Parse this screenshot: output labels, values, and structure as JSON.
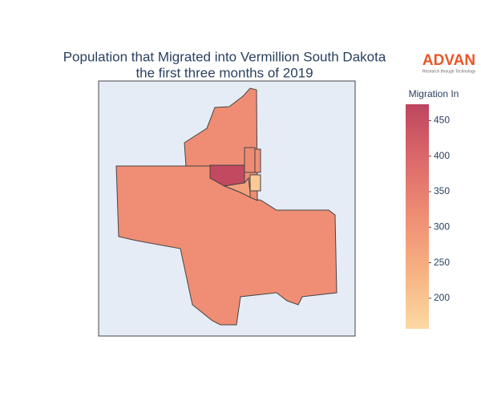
{
  "chart_data": {
    "type": "choropleth",
    "title": [
      "Population that Migrated into Vermillion South Dakota",
      "the first three months of 2019"
    ],
    "logo": {
      "name": "ADVAN",
      "tagline": "Research through Technology"
    },
    "values": [
      315,
      318,
      462,
      275,
      322,
      312,
      190
    ],
    "colorbar": {
      "title": "Migration In",
      "range": [
        157,
        473
      ],
      "ticks": [
        200,
        250,
        300,
        350,
        400,
        450
      ],
      "colorscale": [
        [
          0,
          "#fcd9a3"
        ],
        [
          0.25,
          "#f7b283"
        ],
        [
          0.5,
          "#ef8e74"
        ],
        [
          0.75,
          "#dc6a6a"
        ],
        [
          1,
          "#bd455e"
        ]
      ]
    }
  }
}
